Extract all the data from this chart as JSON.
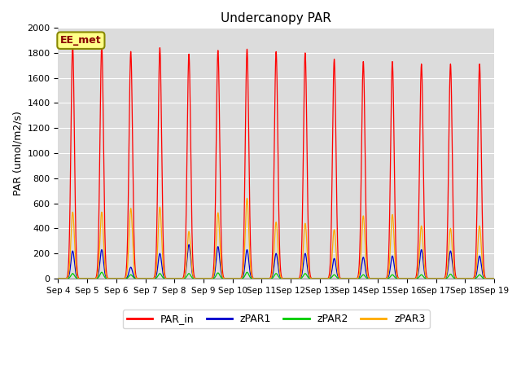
{
  "title": "Undercanopy PAR",
  "ylabel": "PAR (umol/m2/s)",
  "ylim": [
    0,
    2000
  ],
  "background_color": "#dcdcdc",
  "annotation_text": "EE_met",
  "x_tick_labels": [
    "Sep 4",
    "Sep 5",
    "Sep 6",
    "Sep 7",
    "Sep 8",
    "Sep 9",
    "Sep 10",
    "Sep 11",
    "Sep 12",
    "Sep 13",
    "Sep 14",
    "Sep 15",
    "Sep 16",
    "Sep 17",
    "Sep 18",
    "Sep 19"
  ],
  "series_order": [
    "PAR_in",
    "zPAR1",
    "zPAR2",
    "zPAR3"
  ],
  "series": {
    "PAR_in": {
      "color": "#ff0000",
      "peaks": [
        1860,
        1860,
        1810,
        1840,
        1790,
        1820,
        1830,
        1810,
        1800,
        1750,
        1730,
        1730,
        1710,
        1710,
        1710
      ]
    },
    "zPAR1": {
      "color": "#0000cc",
      "peaks": [
        220,
        230,
        90,
        200,
        270,
        255,
        230,
        200,
        200,
        160,
        170,
        180,
        230,
        220,
        180
      ]
    },
    "zPAR2": {
      "color": "#00cc00",
      "peaks": [
        40,
        50,
        30,
        40,
        40,
        45,
        50,
        40,
        40,
        30,
        30,
        30,
        30,
        35,
        30
      ]
    },
    "zPAR3": {
      "color": "#ffaa00",
      "peaks": [
        530,
        530,
        560,
        570,
        375,
        525,
        640,
        450,
        440,
        390,
        500,
        510,
        420,
        400,
        420
      ]
    }
  },
  "legend_entries": [
    "PAR_in",
    "zPAR1",
    "zPAR2",
    "zPAR3"
  ],
  "legend_colors": [
    "#ff0000",
    "#0000cc",
    "#00cc00",
    "#ffaa00"
  ]
}
